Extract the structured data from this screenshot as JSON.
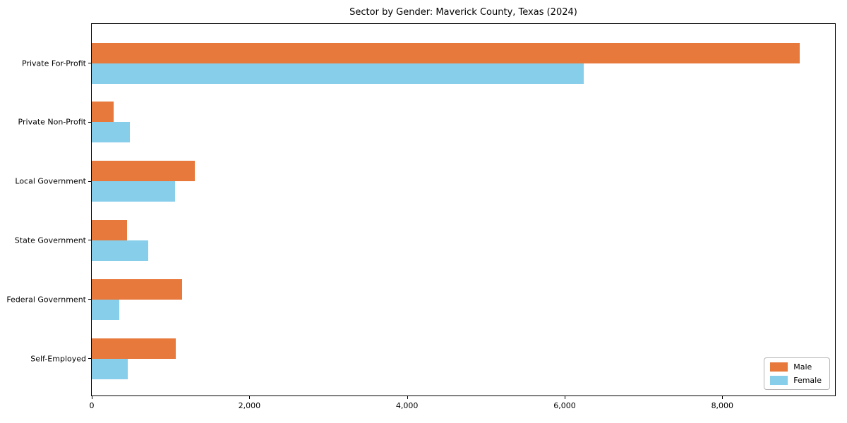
{
  "chart_data": {
    "type": "bar",
    "orientation": "horizontal",
    "title": "Sector by Gender: Maverick County, Texas (2024)",
    "categories": [
      "Private For-Profit",
      "Private Non-Profit",
      "Local Government",
      "State Government",
      "Federal Government",
      "Self-Employed"
    ],
    "series": [
      {
        "name": "Male",
        "color": "#E8793C",
        "values": [
          8980,
          280,
          1310,
          450,
          1150,
          1070
        ]
      },
      {
        "name": "Female",
        "color": "#87CEEB",
        "values": [
          6240,
          480,
          1060,
          720,
          350,
          460
        ]
      }
    ],
    "xlabel": "",
    "ylabel": "",
    "xlim": [
      0,
      9430
    ],
    "xticks": [
      {
        "value": 0,
        "label": "0"
      },
      {
        "value": 2000,
        "label": "2,000"
      },
      {
        "value": 4000,
        "label": "4,000"
      },
      {
        "value": 6000,
        "label": "6,000"
      },
      {
        "value": 8000,
        "label": "8,000"
      }
    ],
    "grid": false,
    "legend_position": "lower right"
  }
}
